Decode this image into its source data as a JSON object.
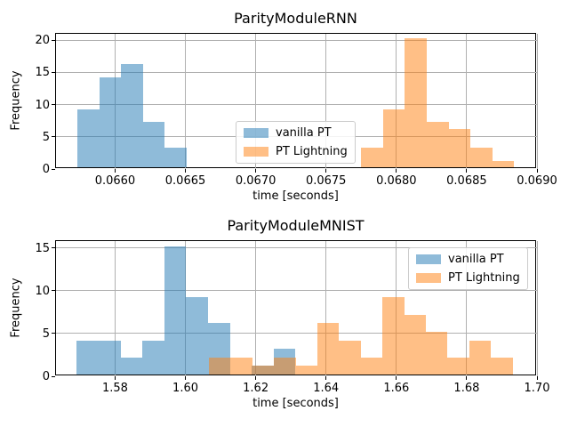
{
  "style": {
    "background": "#ffffff",
    "grid_color": "#b0b0b0",
    "axis_color": "#000000",
    "legend_border_color": "#cccccc"
  },
  "chart_data": [
    {
      "type": "histogram",
      "title": "ParityModuleRNN",
      "xlabel": "time [seconds]",
      "ylabel": "Frequency",
      "xlim": [
        0.06558,
        0.069
      ],
      "ylim": [
        0,
        21.0
      ],
      "xticks": [
        0.066,
        0.0665,
        0.067,
        0.0675,
        0.068,
        0.0685,
        0.069
      ],
      "xtick_labels": [
        "0.0660",
        "0.0665",
        "0.0670",
        "0.0675",
        "0.0680",
        "0.0685",
        "0.0690"
      ],
      "yticks": [
        0,
        5,
        10,
        15,
        20
      ],
      "grid": true,
      "legend_position": "center",
      "series": [
        {
          "name": "vanilla PT",
          "color": "#1f77b4",
          "alpha": 0.5,
          "bin_start": 0.065731,
          "bin_width": 0.0001558,
          "counts": [
            9,
            14,
            16,
            7,
            3
          ]
        },
        {
          "name": "PT Lightning",
          "color": "#ff7f0e",
          "alpha": 0.5,
          "bin_start": 0.067748,
          "bin_width": 0.0001558,
          "counts": [
            3,
            9,
            20,
            7,
            6,
            3,
            1
          ]
        }
      ]
    },
    {
      "type": "histogram",
      "title": "ParityModuleMNIST",
      "xlabel": "time [seconds]",
      "ylabel": "Frequency",
      "xlim": [
        1.5632,
        1.7
      ],
      "ylim": [
        0,
        15.8
      ],
      "xticks": [
        1.58,
        1.6,
        1.62,
        1.64,
        1.66,
        1.68,
        1.7
      ],
      "xtick_labels": [
        "1.58",
        "1.60",
        "1.62",
        "1.64",
        "1.66",
        "1.68",
        "1.70"
      ],
      "yticks": [
        0,
        5,
        10,
        15
      ],
      "grid": true,
      "legend_position": "upper right",
      "series": [
        {
          "name": "vanilla PT",
          "color": "#1f77b4",
          "alpha": 0.5,
          "bin_start": 1.5691,
          "bin_width": 0.006222,
          "counts": [
            4,
            4,
            2,
            4,
            15,
            9,
            6,
            0,
            1,
            3
          ]
        },
        {
          "name": "PT Lightning",
          "color": "#ff7f0e",
          "alpha": 0.5,
          "bin_start": 1.6067,
          "bin_width": 0.00617,
          "counts": [
            2,
            2,
            1,
            2,
            1,
            6,
            4,
            2,
            9,
            7,
            5,
            2,
            4,
            2
          ]
        }
      ]
    }
  ]
}
